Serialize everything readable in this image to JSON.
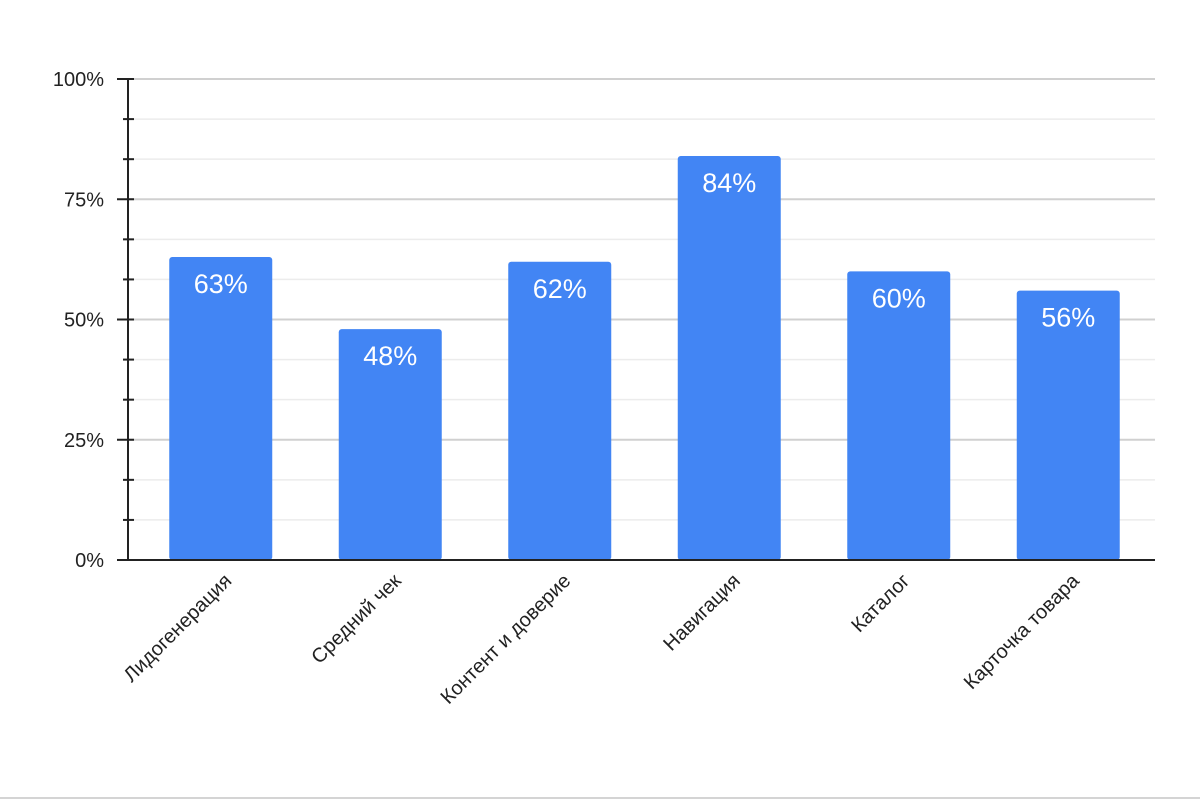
{
  "chart_data": {
    "type": "bar",
    "title": "",
    "xlabel": "",
    "ylabel": "",
    "categories": [
      "Лидогенерация",
      "Средний чек",
      "Контент и доверие",
      "Навигация",
      "Каталог",
      "Карточка товара"
    ],
    "values": [
      63,
      48,
      62,
      84,
      60,
      56
    ],
    "data_labels": [
      "63%",
      "48%",
      "62%",
      "84%",
      "60%",
      "56%"
    ],
    "ylim": [
      0,
      100
    ],
    "yticks": [
      0,
      25,
      50,
      75,
      100
    ],
    "ytick_labels": [
      "0%",
      "25%",
      "50%",
      "75%",
      "100%"
    ],
    "minor_grid_step": 8.333,
    "grid": true,
    "legend": "none",
    "colors": {
      "bar": "#4285f4",
      "grid": "#dddddd",
      "axis": "#222222"
    }
  }
}
